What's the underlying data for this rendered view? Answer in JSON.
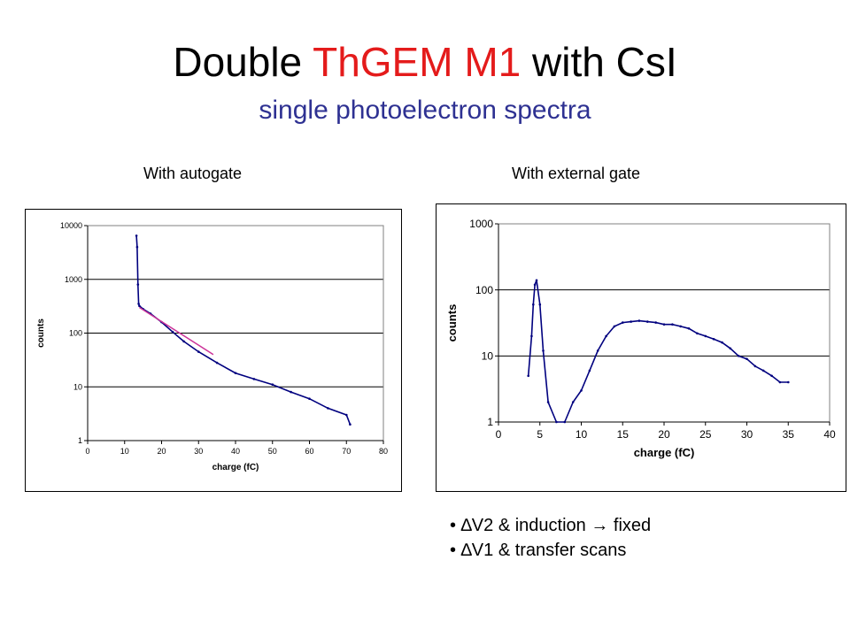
{
  "slide": {
    "title_part1": "Double ",
    "title_accent": "ThGEM M1",
    "title_part2": " with CsI",
    "subtitle": "single photoelectron spectra",
    "caption_left": "With autogate",
    "caption_right": "With external gate",
    "bullets": [
      {
        "text": "∆V2 & induction → fixed"
      },
      {
        "text": "∆V1 & transfer scans"
      }
    ]
  },
  "colors": {
    "series": "#00007f",
    "fit": "#cc3399",
    "title_accent": "#e41b1b",
    "subtitle": "#2e3192"
  },
  "chart_data": [
    {
      "type": "line",
      "xlabel": "charge (fC)",
      "ylabel": "counts",
      "xlim": [
        0,
        80
      ],
      "ylim": [
        1,
        10000
      ],
      "yscale": "log",
      "grid": "horizontal",
      "xticks": [
        "0",
        "10",
        "20",
        "30",
        "40",
        "50",
        "60",
        "70",
        "80"
      ],
      "yticks": [
        "1",
        "10",
        "100",
        "1000",
        "10000"
      ],
      "series": [
        {
          "x": [
            13.2,
            13.4,
            13.6,
            13.8,
            14,
            15,
            17,
            20,
            23,
            26,
            30,
            35,
            40,
            45,
            50,
            55,
            60,
            65,
            70,
            71
          ],
          "values": [
            6500,
            4000,
            800,
            350,
            320,
            280,
            230,
            160,
            105,
            70,
            45,
            28,
            18,
            14,
            11,
            8,
            6,
            4,
            3,
            2
          ]
        }
      ],
      "fit": {
        "x": [
          14,
          34
        ],
        "values": [
          300,
          40
        ]
      }
    },
    {
      "type": "line",
      "xlabel": "charge (fC)",
      "ylabel": "counts",
      "xlim": [
        0,
        40
      ],
      "ylim": [
        1,
        1000
      ],
      "yscale": "log",
      "grid": "horizontal",
      "xticks": [
        "0",
        "5",
        "10",
        "15",
        "20",
        "25",
        "30",
        "35",
        "40"
      ],
      "yticks": [
        "1",
        "10",
        "100",
        "1000"
      ],
      "series": [
        {
          "x": [
            3.6,
            4,
            4.2,
            4.4,
            4.6,
            5,
            5.4,
            6,
            7,
            8,
            9,
            10,
            11,
            12,
            13,
            14,
            15,
            16,
            17,
            18,
            19,
            20,
            21,
            22,
            23,
            24,
            25,
            26,
            27,
            28,
            29,
            30,
            31,
            32,
            33,
            34,
            35
          ],
          "values": [
            5,
            20,
            60,
            120,
            140,
            60,
            12,
            2,
            1,
            1,
            2,
            3,
            6,
            12,
            20,
            28,
            32,
            33,
            34,
            33,
            32,
            30,
            30,
            28,
            26,
            22,
            20,
            18,
            16,
            13,
            10,
            9,
            7,
            6,
            5,
            4,
            4
          ]
        }
      ]
    }
  ]
}
